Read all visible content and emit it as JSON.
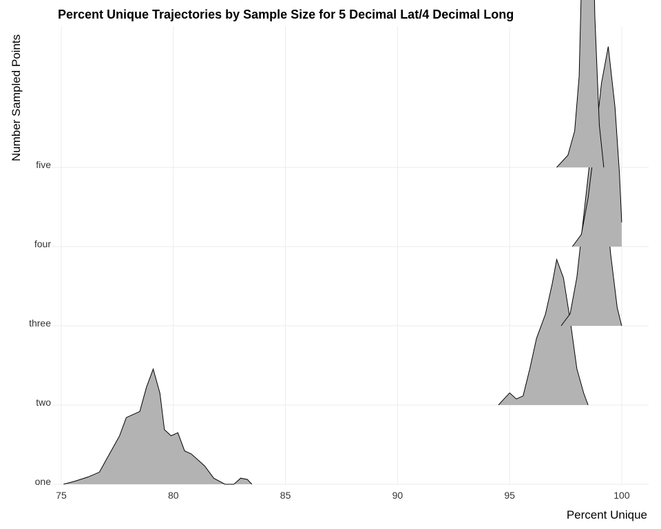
{
  "chart_data": {
    "type": "ridgeline",
    "title": "Percent Unique Trajectories by Sample Size for 5 Decimal Lat/4 Decimal Long",
    "xlabel": "Percent Unique",
    "ylabel": "Number Sampled Points",
    "xlim": [
      74.6,
      101.2
    ],
    "xticks": [
      75,
      80,
      85,
      90,
      95,
      100
    ],
    "grid": true,
    "categories": [
      "one",
      "two",
      "three",
      "four",
      "five"
    ],
    "series": [
      {
        "category": "one",
        "density": [
          [
            75.1,
            0.0
          ],
          [
            75.6,
            0.005
          ],
          [
            76.2,
            0.012
          ],
          [
            76.7,
            0.02
          ],
          [
            77.0,
            0.04
          ],
          [
            77.3,
            0.06
          ],
          [
            77.6,
            0.08
          ],
          [
            77.9,
            0.11
          ],
          [
            78.2,
            0.115
          ],
          [
            78.5,
            0.12
          ],
          [
            78.8,
            0.16
          ],
          [
            79.1,
            0.19
          ],
          [
            79.4,
            0.15
          ],
          [
            79.6,
            0.09
          ],
          [
            79.9,
            0.08
          ],
          [
            80.2,
            0.085
          ],
          [
            80.5,
            0.055
          ],
          [
            80.8,
            0.05
          ],
          [
            81.1,
            0.04
          ],
          [
            81.4,
            0.03
          ],
          [
            81.8,
            0.01
          ],
          [
            82.3,
            0.0
          ],
          [
            82.7,
            0.0
          ],
          [
            83.0,
            0.01
          ],
          [
            83.3,
            0.008
          ],
          [
            83.5,
            0.0
          ]
        ]
      },
      {
        "category": "two",
        "density": [
          [
            94.5,
            0.0
          ],
          [
            94.8,
            0.012
          ],
          [
            95.0,
            0.02
          ],
          [
            95.3,
            0.01
          ],
          [
            95.6,
            0.015
          ],
          [
            95.9,
            0.06
          ],
          [
            96.2,
            0.11
          ],
          [
            96.6,
            0.15
          ],
          [
            96.9,
            0.2
          ],
          [
            97.1,
            0.24
          ],
          [
            97.4,
            0.21
          ],
          [
            97.7,
            0.14
          ],
          [
            98.0,
            0.06
          ],
          [
            98.3,
            0.02
          ],
          [
            98.5,
            0.0
          ]
        ]
      },
      {
        "category": "three",
        "density": [
          [
            97.3,
            0.0
          ],
          [
            97.7,
            0.02
          ],
          [
            98.0,
            0.08
          ],
          [
            98.3,
            0.18
          ],
          [
            98.6,
            0.28
          ],
          [
            98.9,
            0.305
          ],
          [
            99.2,
            0.24
          ],
          [
            99.5,
            0.12
          ],
          [
            99.8,
            0.03
          ],
          [
            100.0,
            0.0
          ]
        ]
      },
      {
        "category": "four",
        "density": [
          [
            97.8,
            0.0
          ],
          [
            98.2,
            0.02
          ],
          [
            98.5,
            0.08
          ],
          [
            98.8,
            0.17
          ],
          [
            99.1,
            0.27
          ],
          [
            99.4,
            0.33
          ],
          [
            99.7,
            0.23
          ],
          [
            99.9,
            0.12
          ],
          [
            100.0,
            0.04
          ]
        ]
      },
      {
        "category": "five",
        "density": [
          [
            97.1,
            0.0
          ],
          [
            97.6,
            0.02
          ],
          [
            97.9,
            0.06
          ],
          [
            98.1,
            0.15
          ],
          [
            98.3,
            0.45
          ],
          [
            98.4,
            0.7
          ],
          [
            98.5,
            0.76
          ],
          [
            98.6,
            0.6
          ],
          [
            98.8,
            0.25
          ],
          [
            99.0,
            0.07
          ],
          [
            99.2,
            0.0
          ]
        ]
      }
    ]
  }
}
